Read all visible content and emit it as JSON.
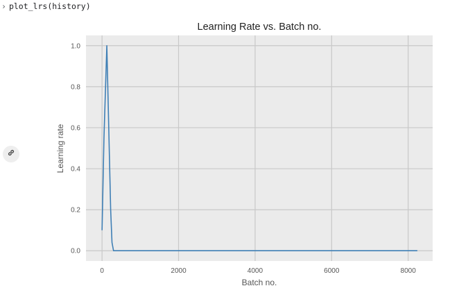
{
  "cell": {
    "prompt_glyph": "›",
    "code": "plot_lrs(history)"
  },
  "output_toolbar": {
    "link_icon": "link-icon"
  },
  "chart_data": {
    "type": "line",
    "title": "Learning Rate vs. Batch no.",
    "xlabel": "Batch no.",
    "ylabel": "Learning rate",
    "xlim": [
      -420,
      8640
    ],
    "ylim": [
      -0.05,
      1.05
    ],
    "xticks": [
      0,
      2000,
      4000,
      6000,
      8000
    ],
    "xtick_labels": [
      "0",
      "2000",
      "4000",
      "6000",
      "8000"
    ],
    "yticks": [
      0.0,
      0.2,
      0.4,
      0.6,
      0.8,
      1.0
    ],
    "ytick_labels": [
      "0.0",
      "0.2",
      "0.4",
      "0.6",
      "0.8",
      "1.0"
    ],
    "grid": true,
    "style": "ggplot-gray",
    "colors": {
      "plot_bg": "#ebebeb",
      "grid": "#c8c8c8",
      "line": "#3f7fb5"
    },
    "series": [
      {
        "x": [
          0,
          50,
          125,
          175,
          225,
          260,
          300,
          8240
        ],
        "values": [
          0.1,
          0.55,
          1.0,
          0.6,
          0.2,
          0.04,
          0.0,
          0.0
        ]
      }
    ]
  }
}
